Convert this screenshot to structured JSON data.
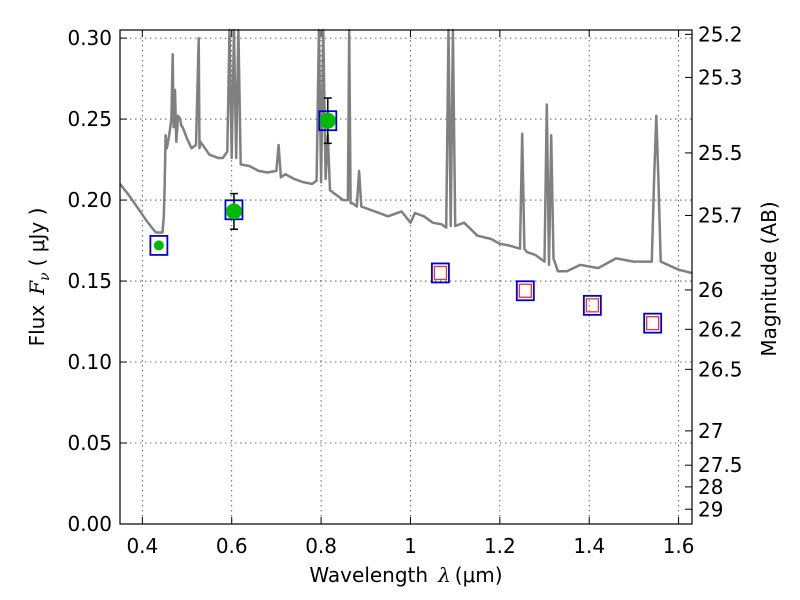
{
  "chart_data": {
    "type": "scatter",
    "xlabel": "Wavelength",
    "xlabel_symbol": "λ",
    "xlabel_unit": "(μm)",
    "ylabel": "Flux",
    "ylabel_symbol": "F",
    "ylabel_subscript": "ν",
    "ylabel_unit": "( μJy )",
    "y2label": "Magnitude (AB)",
    "xlim": [
      0.35,
      1.63
    ],
    "ylim": [
      0.0,
      0.305
    ],
    "grid": true,
    "x_ticks": [
      0.4,
      0.6,
      0.8,
      1.0,
      1.2,
      1.4,
      1.6
    ],
    "x_tick_labels": [
      "0.4",
      "0.6",
      "0.8",
      "1",
      "1.2",
      "1.4",
      "1.6"
    ],
    "y_ticks": [
      0.0,
      0.05,
      0.1,
      0.15,
      0.2,
      0.25,
      0.3
    ],
    "y_tick_labels": [
      "0.00",
      "0.05",
      "0.10",
      "0.15",
      "0.20",
      "0.25",
      "0.30"
    ],
    "y2_ticks": [
      {
        "flux": 0.3023,
        "label": "25.2"
      },
      {
        "flux": 0.2757,
        "label": "25.3"
      },
      {
        "flux": 0.2291,
        "label": "25.5"
      },
      {
        "flux": 0.1905,
        "label": "25.7"
      },
      {
        "flux": 0.1445,
        "label": "26"
      },
      {
        "flux": 0.1202,
        "label": "26.2"
      },
      {
        "flux": 0.0955,
        "label": "26.5"
      },
      {
        "flux": 0.0575,
        "label": "27"
      },
      {
        "flux": 0.0363,
        "label": "27.5"
      },
      {
        "flux": 0.0229,
        "label": "28"
      },
      {
        "flux": 0.0091,
        "label": "29"
      }
    ],
    "colors": {
      "template": "#808080",
      "observed": "#00bb00",
      "model_box": "#0000dd",
      "upper_box": "#ee3333",
      "errorbar": "#000000"
    },
    "series": [
      {
        "name": "template spectrum",
        "kind": "line",
        "x": [
          0.35,
          0.37,
          0.39,
          0.41,
          0.43,
          0.445,
          0.448,
          0.45,
          0.452,
          0.455,
          0.46,
          0.465,
          0.468,
          0.47,
          0.473,
          0.476,
          0.48,
          0.485,
          0.487,
          0.49,
          0.5,
          0.51,
          0.52,
          0.526,
          0.528,
          0.53,
          0.54,
          0.55,
          0.56,
          0.57,
          0.58,
          0.59,
          0.595,
          0.6,
          0.605,
          0.61,
          0.615,
          0.62,
          0.64,
          0.66,
          0.68,
          0.7,
          0.705,
          0.71,
          0.72,
          0.74,
          0.76,
          0.78,
          0.79,
          0.795,
          0.8,
          0.805,
          0.81,
          0.815,
          0.82,
          0.83,
          0.85,
          0.86,
          0.863,
          0.866,
          0.87,
          0.88,
          0.885,
          0.89,
          0.9,
          0.92,
          0.95,
          0.98,
          1.0,
          1.01,
          1.03,
          1.05,
          1.07,
          1.08,
          1.085,
          1.09,
          1.095,
          1.1,
          1.12,
          1.15,
          1.18,
          1.2,
          1.22,
          1.245,
          1.25,
          1.255,
          1.26,
          1.28,
          1.3,
          1.305,
          1.31,
          1.315,
          1.32,
          1.33,
          1.35,
          1.38,
          1.42,
          1.46,
          1.5,
          1.54,
          1.545,
          1.55,
          1.555,
          1.56,
          1.6,
          1.63
        ],
        "y": [
          0.21,
          0.203,
          0.195,
          0.187,
          0.18,
          0.18,
          0.19,
          0.21,
          0.24,
          0.232,
          0.24,
          0.25,
          0.29,
          0.245,
          0.268,
          0.236,
          0.252,
          0.25,
          0.246,
          0.245,
          0.238,
          0.232,
          0.234,
          0.3,
          0.232,
          0.236,
          0.232,
          0.228,
          0.227,
          0.226,
          0.226,
          0.23,
          0.305,
          0.226,
          0.305,
          0.226,
          0.305,
          0.222,
          0.221,
          0.218,
          0.217,
          0.218,
          0.234,
          0.214,
          0.216,
          0.213,
          0.211,
          0.21,
          0.212,
          0.305,
          0.211,
          0.305,
          0.213,
          0.24,
          0.206,
          0.204,
          0.2,
          0.2,
          0.305,
          0.198,
          0.198,
          0.196,
          0.218,
          0.196,
          0.195,
          0.193,
          0.19,
          0.193,
          0.186,
          0.192,
          0.19,
          0.186,
          0.185,
          0.183,
          0.305,
          0.184,
          0.305,
          0.184,
          0.186,
          0.178,
          0.176,
          0.173,
          0.172,
          0.17,
          0.241,
          0.17,
          0.168,
          0.166,
          0.162,
          0.259,
          0.16,
          0.24,
          0.164,
          0.156,
          0.156,
          0.16,
          0.158,
          0.164,
          0.162,
          0.162,
          0.211,
          0.252,
          0.211,
          0.162,
          0.157,
          0.155
        ]
      },
      {
        "name": "model photometry",
        "kind": "open-square",
        "x": [
          0.437,
          0.605,
          0.815,
          1.067,
          1.257,
          1.407,
          1.542
        ],
        "y": [
          0.172,
          0.194,
          0.249,
          0.155,
          0.144,
          0.135,
          0.124
        ]
      },
      {
        "name": "observed photometry",
        "kind": "filled-circle",
        "x": [
          0.437,
          0.605,
          0.815
        ],
        "y": [
          0.172,
          0.193,
          0.249
        ],
        "yerr_low": [
          0.0,
          0.011,
          0.014
        ],
        "yerr_high": [
          0.0,
          0.011,
          0.014
        ]
      },
      {
        "name": "non-detection bands",
        "kind": "open-square-small",
        "x": [
          1.067,
          1.257,
          1.407,
          1.542
        ],
        "y": [
          0.155,
          0.144,
          0.135,
          0.124
        ]
      }
    ]
  }
}
